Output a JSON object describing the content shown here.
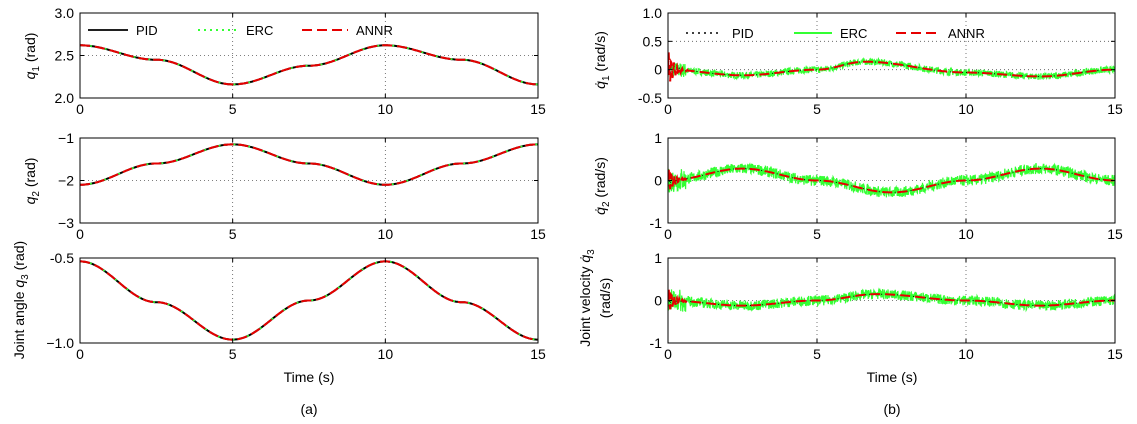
{
  "panel_labels": [
    "(a)",
    "(b)"
  ],
  "legend_a": {
    "pid": "PID",
    "erc": "ERC",
    "annr": "ANNR"
  },
  "legend_b": {
    "pid": "PID",
    "erc": "ERC",
    "annr": "ANNR"
  },
  "time_label_a": "Time (s)",
  "time_label_b": "Time (s)",
  "ylabels": {
    "a1": "q1 (rad)",
    "a2": "q2 (rad)",
    "a3": "Joint angle q3 (rad)",
    "b1": "q̇1 (rad/s)",
    "b2": "q̇2 (rad/s)",
    "b3": "Joint velocity q̇3 (rad/s)"
  },
  "colors": {
    "pid": "#000000",
    "erc": "#33ff33",
    "annr": "#e60000"
  },
  "chart_data": [
    {
      "id": "a1",
      "type": "line",
      "xlabel": "",
      "ylabel": "q1 (rad)",
      "xlim": [
        0,
        15
      ],
      "ylim": [
        2.0,
        3.0
      ],
      "xticks": [
        "0",
        "5",
        "10",
        "15"
      ],
      "yticks": [
        "2.0",
        "2.5",
        "3.0"
      ],
      "grid": true,
      "legend": "top",
      "series": [
        {
          "name": "PID",
          "x": [
            0,
            2.5,
            5,
            7.5,
            10,
            12.5,
            15
          ],
          "y": [
            2.62,
            2.45,
            2.16,
            2.38,
            2.62,
            2.45,
            2.16
          ]
        },
        {
          "name": "ERC",
          "x": [
            0,
            2.5,
            5,
            7.5,
            10,
            12.5,
            15
          ],
          "y": [
            2.62,
            2.45,
            2.16,
            2.38,
            2.62,
            2.45,
            2.16
          ]
        },
        {
          "name": "ANNR",
          "x": [
            0,
            2.5,
            5,
            7.5,
            10,
            12.5,
            15
          ],
          "y": [
            2.62,
            2.45,
            2.16,
            2.38,
            2.62,
            2.45,
            2.16
          ]
        }
      ]
    },
    {
      "id": "a2",
      "type": "line",
      "xlabel": "",
      "ylabel": "q2 (rad)",
      "xlim": [
        0,
        15
      ],
      "ylim": [
        -3,
        -1
      ],
      "xticks": [
        "0",
        "5",
        "10",
        "15"
      ],
      "yticks": [
        "−3",
        "−2",
        "−1"
      ],
      "grid": true,
      "legend": "none",
      "series": [
        {
          "name": "PID",
          "x": [
            0,
            2.5,
            5,
            7.5,
            10,
            12.5,
            15
          ],
          "y": [
            -2.1,
            -1.6,
            -1.15,
            -1.6,
            -2.1,
            -1.6,
            -1.15
          ]
        },
        {
          "name": "ERC",
          "x": [
            0,
            2.5,
            5,
            7.5,
            10,
            12.5,
            15
          ],
          "y": [
            -2.1,
            -1.6,
            -1.15,
            -1.6,
            -2.1,
            -1.6,
            -1.15
          ]
        },
        {
          "name": "ANNR",
          "x": [
            0,
            2.5,
            5,
            7.5,
            10,
            12.5,
            15
          ],
          "y": [
            -2.1,
            -1.6,
            -1.15,
            -1.6,
            -2.1,
            -1.6,
            -1.15
          ]
        }
      ]
    },
    {
      "id": "a3",
      "type": "line",
      "xlabel": "Time (s)",
      "ylabel": "Joint angle q3 (rad)",
      "xlim": [
        0,
        15
      ],
      "ylim": [
        -1.0,
        -0.5
      ],
      "xticks": [
        "0",
        "5",
        "10",
        "15"
      ],
      "yticks": [
        "−1.0",
        "-0.5"
      ],
      "grid": true,
      "legend": "none",
      "series": [
        {
          "name": "PID",
          "x": [
            0,
            2.5,
            5,
            7.5,
            10,
            12.5,
            15
          ],
          "y": [
            -0.52,
            -0.76,
            -0.98,
            -0.75,
            -0.52,
            -0.76,
            -0.98
          ]
        },
        {
          "name": "ERC",
          "x": [
            0,
            2.5,
            5,
            7.5,
            10,
            12.5,
            15
          ],
          "y": [
            -0.52,
            -0.76,
            -0.98,
            -0.75,
            -0.52,
            -0.76,
            -0.98
          ]
        },
        {
          "name": "ANNR",
          "x": [
            0,
            2.5,
            5,
            7.5,
            10,
            12.5,
            15
          ],
          "y": [
            -0.52,
            -0.76,
            -0.98,
            -0.75,
            -0.52,
            -0.76,
            -0.98
          ]
        }
      ]
    },
    {
      "id": "b1",
      "type": "line",
      "xlabel": "",
      "ylabel": "q̇1 (rad/s)",
      "xlim": [
        0,
        15
      ],
      "ylim": [
        -0.5,
        1.0
      ],
      "xticks": [
        "0",
        "5",
        "10",
        "15"
      ],
      "yticks": [
        "-0.5",
        "0",
        "0.5",
        "1.0"
      ],
      "grid": true,
      "legend": "top",
      "series": [
        {
          "name": "ANNR",
          "x": [
            0,
            2.5,
            5,
            6.6,
            10,
            12.5,
            15
          ],
          "y": [
            0,
            -0.1,
            0,
            0.14,
            -0.05,
            -0.12,
            0
          ]
        }
      ],
      "erc_noise": 0.06
    },
    {
      "id": "b2",
      "type": "line",
      "xlabel": "",
      "ylabel": "q̇2 (rad/s)",
      "xlim": [
        0,
        15
      ],
      "ylim": [
        -1,
        1
      ],
      "xticks": [
        "0",
        "5",
        "10",
        "15"
      ],
      "yticks": [
        "-1",
        "0",
        "1"
      ],
      "grid": true,
      "legend": "none",
      "series": [
        {
          "name": "ANNR",
          "x": [
            0,
            2.5,
            5,
            7.5,
            10,
            12.5,
            15
          ],
          "y": [
            0,
            0.28,
            0,
            -0.28,
            0,
            0.28,
            0
          ]
        }
      ],
      "erc_noise": 0.13
    },
    {
      "id": "b3",
      "type": "line",
      "xlabel": "Time (s)",
      "ylabel": "Joint velocity q̇3 (rad/s)",
      "xlim": [
        0,
        15
      ],
      "ylim": [
        -1,
        1
      ],
      "xticks": [
        "0",
        "5",
        "10",
        "15"
      ],
      "yticks": [
        "-1",
        "0",
        "1"
      ],
      "grid": true,
      "legend": "none",
      "series": [
        {
          "name": "ANNR",
          "x": [
            0,
            2.5,
            5,
            7,
            10,
            12.5,
            15
          ],
          "y": [
            0,
            -0.12,
            0,
            0.15,
            0,
            -0.12,
            0
          ]
        }
      ],
      "erc_noise": 0.12
    }
  ]
}
